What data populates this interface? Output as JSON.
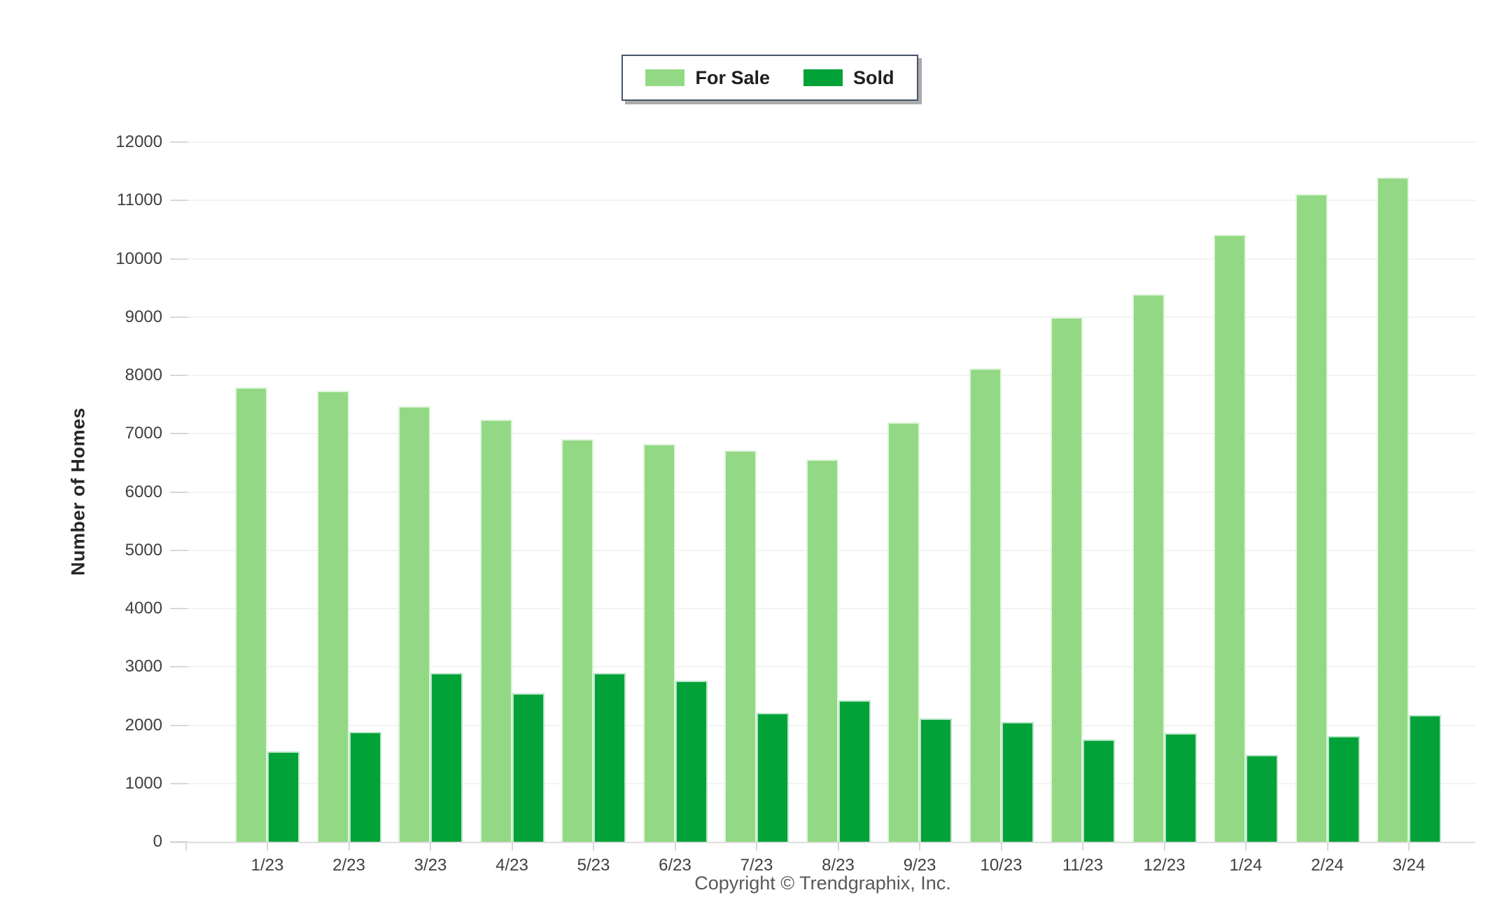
{
  "legend": {
    "items": [
      {
        "label": "For Sale",
        "color": "#93D985"
      },
      {
        "label": "Sold",
        "color": "#02A238"
      }
    ]
  },
  "footer": {
    "copyright": "Copyright © Trendgraphix, Inc."
  },
  "colors": {
    "for_sale": "#93D985",
    "sold": "#02A238",
    "legend_border": "#44546A",
    "gridline": "#f3f3f3",
    "axis_line": "#dedede",
    "tick_text": "#404040",
    "copyright_text": "#595959"
  },
  "chart_data": {
    "type": "bar",
    "title": "",
    "xlabel": "",
    "ylabel": "Number of Homes",
    "categories": [
      "1/23",
      "2/23",
      "3/23",
      "4/23",
      "5/23",
      "6/23",
      "7/23",
      "8/23",
      "9/23",
      "10/23",
      "11/23",
      "12/23",
      "1/24",
      "2/24",
      "3/24"
    ],
    "series": [
      {
        "name": "For Sale",
        "color": "#93D985",
        "values": [
          7800,
          7730,
          7470,
          7240,
          6910,
          6820,
          6710,
          6560,
          7200,
          8120,
          9000,
          9390,
          10420,
          11110,
          11400
        ]
      },
      {
        "name": "Sold",
        "color": "#02A238",
        "values": [
          1550,
          1890,
          2900,
          2550,
          2900,
          2760,
          2210,
          2430,
          2110,
          2050,
          1750,
          1860,
          1490,
          1810,
          2180
        ]
      }
    ],
    "ylim": [
      0,
      12000
    ],
    "ytick_step": 1000,
    "y_ticks": [
      0,
      1000,
      2000,
      3000,
      4000,
      5000,
      6000,
      7000,
      8000,
      9000,
      10000,
      11000,
      12000
    ],
    "grid": true,
    "legend_position": "top"
  }
}
